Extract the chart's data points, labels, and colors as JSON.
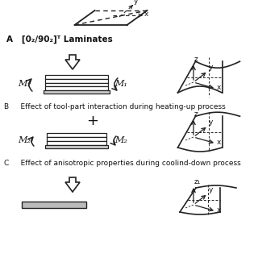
{
  "bg_color": "#ffffff",
  "text_color": "#111111",
  "line_color": "#222222",
  "title_A": "A   [0₂/90₂]ᵀ Laminates",
  "label_B": "B     Effect of tool-part interaction during heating-up process",
  "label_C": "C     Effect of anisotropic properties during coolind-down process",
  "plus_sign": "+",
  "M1": "M₁",
  "M2": "M₂",
  "figsize": [
    3.2,
    3.2
  ],
  "dpi": 100
}
